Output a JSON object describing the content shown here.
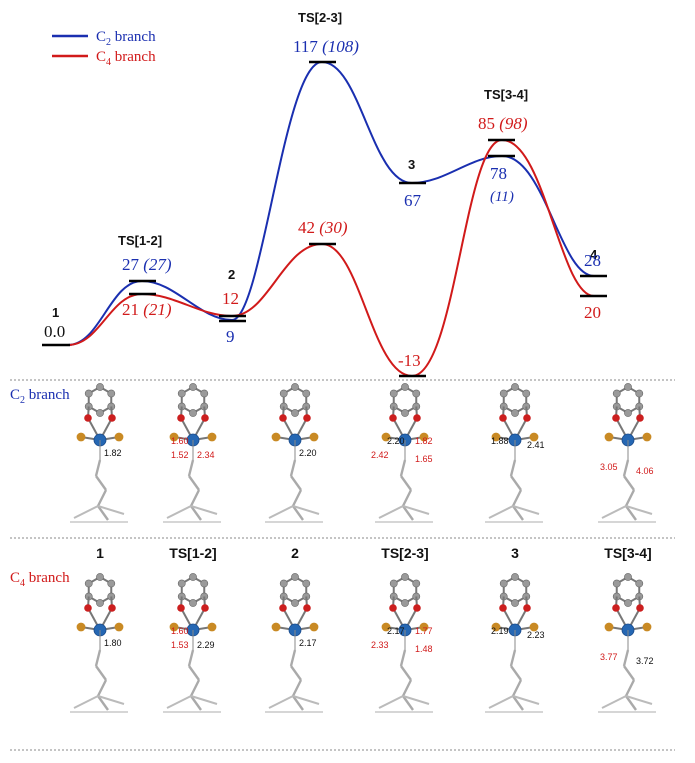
{
  "legend": {
    "c2": {
      "pre": "C",
      "sub": "2",
      "post": " branch"
    },
    "c4": {
      "pre": "C",
      "sub": "4",
      "post": " branch"
    }
  },
  "colors": {
    "c2": "#1a2fb0",
    "c4": "#d11a1a",
    "level": "#000000",
    "divider": "#888888"
  },
  "energy_profile": {
    "states": [
      {
        "name": "1",
        "c2": {
          "value": "0.0"
        }
      },
      {
        "name": "TS[1-2]",
        "c2": {
          "value": "27",
          "paren": "(27)"
        },
        "c4": {
          "value": "21",
          "paren": "(21)"
        }
      },
      {
        "name": "2",
        "c2": {
          "value": "9"
        },
        "c4": {
          "value": "12"
        }
      },
      {
        "name": "TS[2-3]",
        "c2": {
          "value": "117",
          "paren": "(108)"
        },
        "c4": {
          "value": "42",
          "paren": "(30)"
        }
      },
      {
        "name": "3",
        "c2": {
          "value": "67"
        },
        "c4": {
          "value": "-13"
        }
      },
      {
        "name": "TS[3-4]",
        "c2": {
          "value": "78",
          "paren": "(11)"
        },
        "c4": {
          "value": "85",
          "paren": "(98)"
        }
      },
      {
        "name": "4",
        "c2": {
          "value": "28"
        },
        "c4": {
          "value": "20"
        }
      }
    ]
  },
  "structures": {
    "c2_row_label": {
      "pre": "C",
      "sub": "2",
      "post": " branch"
    },
    "c4_row_label": {
      "pre": "C",
      "sub": "4",
      "post": " branch"
    },
    "column_labels": [
      "1",
      "TS[1-2]",
      "2",
      "TS[2-3]",
      "3",
      "TS[3-4]"
    ],
    "c2_bond_labels": [
      [
        {
          "text": "1.82",
          "color": "black"
        }
      ],
      [
        {
          "text": "1.60",
          "color": "red"
        },
        {
          "text": "1.52",
          "color": "red"
        },
        {
          "text": "2.34",
          "color": "red"
        }
      ],
      [
        {
          "text": "2.20",
          "color": "black"
        }
      ],
      [
        {
          "text": "2.20",
          "color": "black"
        },
        {
          "text": "1.82",
          "color": "red"
        },
        {
          "text": "2.42",
          "color": "red"
        },
        {
          "text": "1.65",
          "color": "red"
        }
      ],
      [
        {
          "text": "1.88",
          "color": "black"
        },
        {
          "text": "2.41",
          "color": "black"
        }
      ],
      [
        {
          "text": "3.05",
          "color": "red"
        },
        {
          "text": "4.06",
          "color": "red"
        }
      ]
    ],
    "c4_bond_labels": [
      [
        {
          "text": "1.80",
          "color": "black"
        }
      ],
      [
        {
          "text": "1.60",
          "color": "red"
        },
        {
          "text": "1.53",
          "color": "red"
        },
        {
          "text": "2.29",
          "color": "black"
        }
      ],
      [
        {
          "text": "2.17",
          "color": "black"
        }
      ],
      [
        {
          "text": "2.17",
          "color": "black"
        },
        {
          "text": "1.77",
          "color": "red"
        },
        {
          "text": "2.33",
          "color": "red"
        },
        {
          "text": "1.48",
          "color": "red"
        }
      ],
      [
        {
          "text": "2.19",
          "color": "black"
        },
        {
          "text": "2.23",
          "color": "black"
        }
      ],
      [
        {
          "text": "3.77",
          "color": "red"
        },
        {
          "text": "3.72",
          "color": "black"
        }
      ]
    ]
  }
}
